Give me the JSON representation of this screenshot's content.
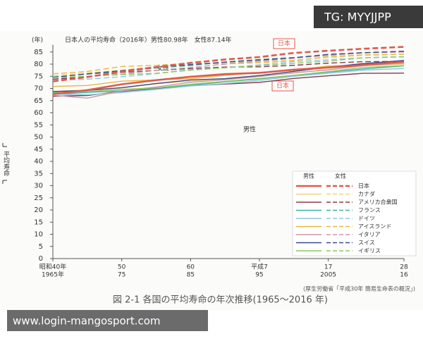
{
  "chart_data": {
    "type": "line",
    "title": "日本人の平均寿命（2016年）男性80.98年　女性87.14年",
    "y_unit": "(年)",
    "y_label": "平均寿命",
    "caption": "図 2-1  各国の平均寿命の年次推移(1965～2016 年)",
    "source": "(厚生労働省「平成30年 簡易生命表の概況」)",
    "annotations": {
      "female": "女性",
      "male": "男性",
      "japan_female": "日本",
      "japan_male": "日本"
    },
    "legend_headers": {
      "male": "男性",
      "female": "女性"
    },
    "x": [
      1965,
      1970,
      1975,
      1980,
      1985,
      1990,
      1995,
      2000,
      2005,
      2010,
      2016
    ],
    "xlim": [
      1965,
      2016
    ],
    "xticks": [
      {
        "value": 1965,
        "label": [
          "昭和40年",
          "1965年"
        ]
      },
      {
        "value": 1975,
        "label": [
          "50",
          "75"
        ]
      },
      {
        "value": 1985,
        "label": [
          "60",
          "85"
        ]
      },
      {
        "value": 1995,
        "label": [
          "平成7",
          "95"
        ]
      },
      {
        "value": 2005,
        "label": [
          "17",
          "2005"
        ]
      },
      {
        "value": 2016,
        "label": [
          "28",
          "16"
        ]
      }
    ],
    "ylim": [
      0,
      88
    ],
    "yticks": [
      0,
      5,
      10,
      15,
      20,
      25,
      30,
      35,
      40,
      45,
      50,
      55,
      60,
      65,
      70,
      75,
      80,
      85
    ],
    "series": [
      {
        "name": "日本",
        "color": "#e05a4a",
        "male": [
          67.7,
          69.3,
          71.7,
          73.4,
          74.8,
          75.9,
          76.4,
          77.7,
          78.6,
          79.6,
          81.0
        ],
        "female": [
          72.9,
          74.7,
          76.9,
          78.8,
          80.5,
          81.9,
          82.9,
          84.6,
          85.5,
          86.3,
          87.1
        ]
      },
      {
        "name": "カナダ",
        "color": "#f2d27a",
        "male": [
          68.8,
          69.3,
          70.2,
          71.9,
          73.0,
          74.0,
          75.1,
          76.3,
          77.8,
          79.3,
          80.0
        ],
        "female": [
          75.2,
          76.4,
          77.5,
          78.9,
          79.7,
          80.6,
          81.0,
          81.7,
          82.7,
          83.6,
          84.0
        ]
      },
      {
        "name": "アメリカ合衆国",
        "color": "#8b3a4a",
        "male": [
          66.8,
          67.1,
          68.8,
          70.0,
          71.1,
          71.8,
          72.5,
          74.1,
          75.2,
          76.2,
          76.3
        ],
        "female": [
          73.8,
          74.7,
          76.6,
          77.4,
          78.2,
          78.8,
          78.9,
          79.5,
          80.4,
          81.0,
          81.1
        ]
      },
      {
        "name": "フランス",
        "color": "#3bb5a0",
        "male": [
          67.5,
          68.4,
          69.0,
          70.2,
          71.3,
          72.7,
          73.9,
          75.3,
          76.7,
          78.0,
          79.3
        ],
        "female": [
          74.7,
          75.9,
          76.9,
          78.4,
          79.4,
          80.9,
          81.9,
          82.7,
          83.8,
          84.6,
          85.3
        ]
      },
      {
        "name": "ドイツ",
        "color": "#8fc8e8",
        "male": [
          67.6,
          67.4,
          68.3,
          69.6,
          71.0,
          72.0,
          73.3,
          75.0,
          76.2,
          77.5,
          78.2
        ],
        "female": [
          73.4,
          73.8,
          74.8,
          76.1,
          77.8,
          78.5,
          79.7,
          81.0,
          81.8,
          82.6,
          83.1
        ]
      },
      {
        "name": "アイスランド",
        "color": "#e8b840",
        "male": [
          70.8,
          71.2,
          73.0,
          73.5,
          74.0,
          75.4,
          76.5,
          77.5,
          79.2,
          79.5,
          80.7
        ],
        "female": [
          76.0,
          77.0,
          79.0,
          79.5,
          80.4,
          80.1,
          80.6,
          81.4,
          83.1,
          83.8,
          84.1
        ]
      },
      {
        "name": "イタリア",
        "color": "#c89aa8",
        "male": [
          67.2,
          66.0,
          69.0,
          70.6,
          72.5,
          73.6,
          74.9,
          76.5,
          77.6,
          79.4,
          80.3
        ],
        "female": [
          72.9,
          74.9,
          75.9,
          77.4,
          78.6,
          80.0,
          81.2,
          82.5,
          83.6,
          84.6,
          85.0
        ]
      },
      {
        "name": "スイス",
        "color": "#3c4a8a",
        "male": [
          68.7,
          69.2,
          70.3,
          72.0,
          73.5,
          74.0,
          75.3,
          77.0,
          78.7,
          80.2,
          81.5
        ],
        "female": [
          74.5,
          76.0,
          77.3,
          78.8,
          79.8,
          80.8,
          81.7,
          82.6,
          84.0,
          84.7,
          85.3
        ]
      },
      {
        "name": "イギリス",
        "color": "#8cc860",
        "male": [
          68.3,
          68.7,
          69.6,
          70.2,
          71.7,
          72.9,
          74.1,
          75.4,
          76.9,
          78.6,
          79.4
        ],
        "female": [
          74.4,
          75.0,
          75.7,
          76.2,
          77.5,
          78.5,
          79.4,
          80.3,
          81.2,
          82.6,
          83.0
        ]
      }
    ]
  },
  "watermarks": [
    "TG: MYYJJPP",
    "www.login-mangosport.com"
  ]
}
